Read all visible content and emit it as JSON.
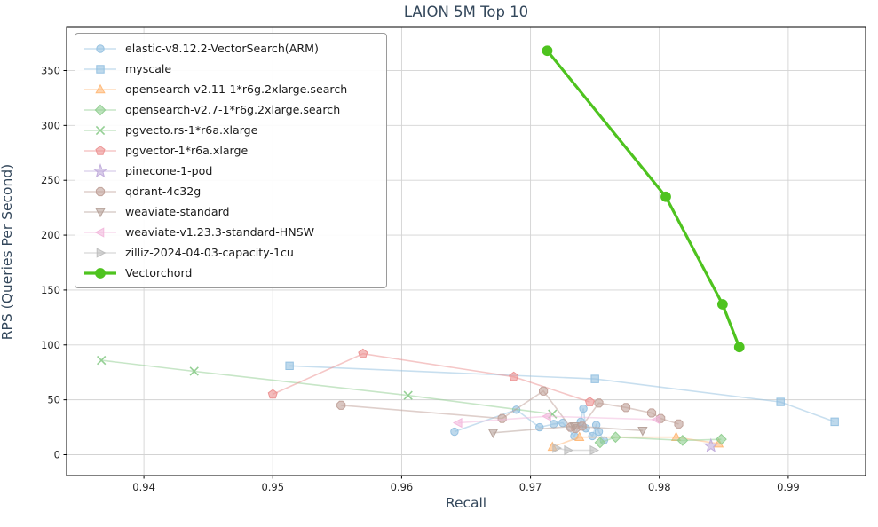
{
  "chart_data": {
    "type": "line",
    "title": "LAION 5M Top 10",
    "xlabel": "Recall",
    "ylabel": "RPS (Queries Per Second)",
    "xlim": [
      0.934,
      0.996
    ],
    "ylim": [
      -19,
      390
    ],
    "xticks": [
      0.94,
      0.95,
      0.96,
      0.97,
      0.98,
      0.99
    ],
    "yticks": [
      0,
      50,
      100,
      150,
      200,
      250,
      300,
      350
    ],
    "grid": true,
    "legend_position": "upper-left",
    "series": [
      {
        "name": "elastic-v8.12.2-VectorSearch(ARM)",
        "marker": "circle",
        "color": "#92c0e0",
        "linewidth": 1.6,
        "alpha": 0.5,
        "markersize": 4.2,
        "points": [
          [
            0.9641,
            21
          ],
          [
            0.9689,
            41
          ],
          [
            0.9707,
            25
          ],
          [
            0.9718,
            28
          ],
          [
            0.9725,
            29
          ],
          [
            0.9734,
            17
          ],
          [
            0.9739,
            30
          ],
          [
            0.9741,
            42
          ],
          [
            0.9743,
            24
          ],
          [
            0.9748,
            17
          ],
          [
            0.9751,
            27
          ],
          [
            0.9753,
            21
          ],
          [
            0.9757,
            13
          ]
        ]
      },
      {
        "name": "myscale",
        "marker": "square",
        "color": "#92c0e0",
        "linewidth": 1.6,
        "alpha": 0.5,
        "markersize": 4.2,
        "points": [
          [
            0.9513,
            81
          ],
          [
            0.975,
            69
          ],
          [
            0.9894,
            48
          ],
          [
            0.9936,
            30
          ]
        ]
      },
      {
        "name": "opensearch-v2.11-1*r6g.2xlarge.search",
        "marker": "triangle-up",
        "color": "#ffb877",
        "linewidth": 1.6,
        "alpha": 0.5,
        "markersize": 4.2,
        "points": [
          [
            0.9717,
            7
          ],
          [
            0.9738,
            16
          ],
          [
            0.9813,
            16
          ],
          [
            0.9846,
            10
          ]
        ]
      },
      {
        "name": "opensearch-v2.7-1*r6g.2xlarge.search",
        "marker": "diamond",
        "color": "#8fce8f",
        "linewidth": 1.6,
        "alpha": 0.5,
        "markersize": 4.2,
        "points": [
          [
            0.9754,
            11
          ],
          [
            0.9766,
            16
          ],
          [
            0.9818,
            13
          ],
          [
            0.9848,
            14
          ]
        ]
      },
      {
        "name": "pgvecto.rs-1*r6a.xlarge",
        "marker": "x",
        "color": "#8fce8f",
        "linewidth": 1.6,
        "alpha": 0.5,
        "markersize": 4.6,
        "points": [
          [
            0.9367,
            86
          ],
          [
            0.9439,
            76
          ],
          [
            0.9605,
            54
          ],
          [
            0.9717,
            37
          ]
        ]
      },
      {
        "name": "pgvector-1*r6a.xlarge",
        "marker": "pentagon",
        "color": "#ec9090",
        "linewidth": 1.6,
        "alpha": 0.5,
        "markersize": 4.2,
        "points": [
          [
            0.95,
            55
          ],
          [
            0.957,
            92
          ],
          [
            0.9687,
            71
          ],
          [
            0.9746,
            48
          ]
        ]
      },
      {
        "name": "pinecone-1-pod",
        "marker": "star",
        "color": "#c0abdb",
        "linewidth": 1.6,
        "alpha": 0.5,
        "markersize": 5.0,
        "points": [
          [
            0.984,
            8
          ]
        ]
      },
      {
        "name": "qdrant-4c32g",
        "marker": "octagon",
        "color": "#c0a098",
        "linewidth": 1.6,
        "alpha": 0.5,
        "markersize": 4.2,
        "points": [
          [
            0.9553,
            45
          ],
          [
            0.9678,
            33
          ],
          [
            0.971,
            58
          ],
          [
            0.9731,
            25
          ],
          [
            0.9735,
            24
          ],
          [
            0.974,
            26
          ],
          [
            0.9753,
            47
          ],
          [
            0.9774,
            43
          ],
          [
            0.9794,
            38
          ],
          [
            0.9801,
            33
          ],
          [
            0.9815,
            28
          ]
        ]
      },
      {
        "name": "weaviate-standard",
        "marker": "triangle-down",
        "color": "#b5a098",
        "linewidth": 1.6,
        "alpha": 0.5,
        "markersize": 4.2,
        "points": [
          [
            0.9671,
            20
          ],
          [
            0.9734,
            26
          ],
          [
            0.9787,
            22
          ]
        ]
      },
      {
        "name": "weaviate-v1.23.3-standard-HNSW",
        "marker": "triangle-left",
        "color": "#f2b8dc",
        "linewidth": 1.6,
        "alpha": 0.5,
        "markersize": 4.2,
        "points": [
          [
            0.9644,
            29
          ],
          [
            0.9713,
            35
          ],
          [
            0.9798,
            32
          ]
        ]
      },
      {
        "name": "zilliz-2024-04-03-capacity-1cu",
        "marker": "triangle-right",
        "color": "#bdbdbd",
        "linewidth": 1.6,
        "alpha": 0.5,
        "markersize": 4.2,
        "points": [
          [
            0.972,
            6
          ],
          [
            0.9729,
            4
          ],
          [
            0.9749,
            4
          ]
        ]
      },
      {
        "name": "Vectorchord",
        "marker": "circle",
        "color": "#4ec31f",
        "linewidth": 3.2,
        "alpha": 1.0,
        "markersize": 5.4,
        "points": [
          [
            0.9713,
            368
          ],
          [
            0.9805,
            235
          ],
          [
            0.9849,
            137
          ],
          [
            0.9862,
            98
          ]
        ]
      }
    ]
  }
}
